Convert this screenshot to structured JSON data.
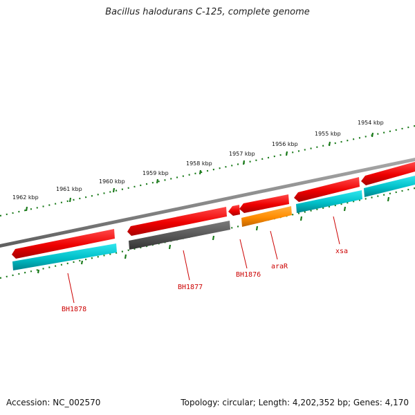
{
  "title": "Bacillus halodurans C-125, complete genome",
  "footer": {
    "accession": "Accession: NC_002570",
    "summary": "Topology: circular; Length: 4,202,352 bp; Genes: 4,170"
  },
  "colors": {
    "backbone": "#888888",
    "ruler_ticks": "#1a7a1a",
    "forward_gene": "#ee0000",
    "forward_cds": "#00bfc8",
    "pseudo_gene": "#555555",
    "regulator": "#ff8c00",
    "label": "#cc0000"
  },
  "ruler": {
    "labels": [
      "1962 kbp",
      "1961 kbp",
      "1960 kbp",
      "1959 kbp",
      "1958 kbp",
      "1957 kbp",
      "1956 kbp",
      "1955 kbp",
      "1954 kbp"
    ]
  },
  "gene_labels": [
    "BH1878",
    "BH1877",
    "BH1876",
    "araR",
    "xsa"
  ]
}
